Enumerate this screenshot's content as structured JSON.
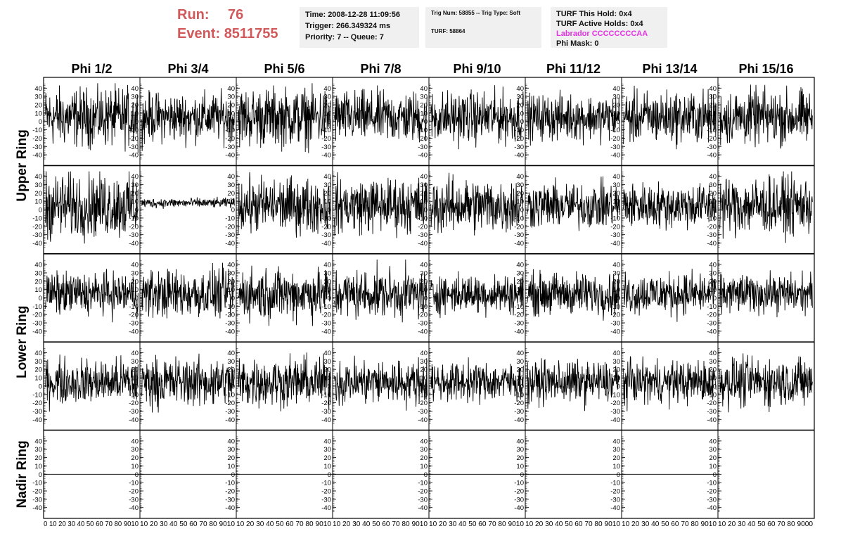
{
  "header": {
    "run_label": "Run:",
    "run_value": "76",
    "event_label": "Event:",
    "event_value": "8511755",
    "time_line": "Time: 2008-12-28 11:09:56",
    "trigger_line": "Trigger: 266.349324 ms",
    "priority_line": "Priority: 7 -- Queue: 7",
    "trig_num_line": "Trig Num: 58855 -- Trig Type: Soft",
    "turf_line": "TURF: 58864",
    "turf_this_hold": "TURF This Hold: 0x4",
    "turf_active_holds": "TURF Active Holds: 0x4",
    "labrador_line": "Labrador CCCCCCCCAA",
    "phi_mask_line": "Phi Mask: 0"
  },
  "colors": {
    "run_text": "#d0595c",
    "info_box_bg": "#f0f0f0",
    "labrador_text": "#e233e2",
    "trace": "#000000"
  },
  "chart_data": {
    "type": "line",
    "columns": [
      "Phi 1/2",
      "Phi 3/4",
      "Phi 5/6",
      "Phi 7/8",
      "Phi 9/10",
      "Phi 11/12",
      "Phi 13/14",
      "Phi 15/16"
    ],
    "row_labels": [
      "Upper Ring",
      "Lower Ring",
      "Nadir Ring"
    ],
    "rows_per_label": [
      2,
      2,
      1
    ],
    "ylim": [
      -47,
      47
    ],
    "yticks": [
      "40",
      "30",
      "20",
      "10",
      "0",
      "-10",
      "-20",
      "-30",
      "-40"
    ],
    "ytick_values": [
      40,
      30,
      20,
      10,
      0,
      -10,
      -20,
      -30,
      -40
    ],
    "xlim": [
      0,
      100
    ],
    "xtick_labels": [
      "0 10 20 30 40 50 60 70 80 9010",
      "10 20 30 40 50 60 70 80 9010",
      "10 20 30 40 50 60 70 80 9010",
      "10 20 30 40 50 60 70 80 9010",
      "10 20 30 40 50 60 70 80 9010",
      "10 20 30 40 50 60 70 80 9010",
      "10 20 30 40 50 60 70 80 9010",
      "10 20 30 40 50 60 70 80 9000"
    ],
    "samples_per_trace": 260,
    "series": [
      {
        "row": 0,
        "col": 0,
        "amplitude": 18,
        "offset": 5,
        "flat": false
      },
      {
        "row": 0,
        "col": 1,
        "amplitude": 15,
        "offset": 5,
        "flat": false
      },
      {
        "row": 0,
        "col": 2,
        "amplitude": 18,
        "offset": 5,
        "flat": false
      },
      {
        "row": 0,
        "col": 3,
        "amplitude": 16,
        "offset": 5,
        "flat": false
      },
      {
        "row": 0,
        "col": 4,
        "amplitude": 16,
        "offset": 5,
        "flat": false
      },
      {
        "row": 0,
        "col": 5,
        "amplitude": 14,
        "offset": 5,
        "flat": false
      },
      {
        "row": 0,
        "col": 6,
        "amplitude": 16,
        "offset": 5,
        "flat": false
      },
      {
        "row": 0,
        "col": 7,
        "amplitude": 17,
        "offset": 5,
        "flat": false
      },
      {
        "row": 1,
        "col": 0,
        "amplitude": 20,
        "offset": 5,
        "flat": false
      },
      {
        "row": 1,
        "col": 1,
        "amplitude": 3,
        "offset": 8,
        "flat": false
      },
      {
        "row": 1,
        "col": 2,
        "amplitude": 17,
        "offset": 5,
        "flat": false
      },
      {
        "row": 1,
        "col": 3,
        "amplitude": 17,
        "offset": 5,
        "flat": false
      },
      {
        "row": 1,
        "col": 4,
        "amplitude": 17,
        "offset": 5,
        "flat": false
      },
      {
        "row": 1,
        "col": 5,
        "amplitude": 14,
        "offset": 5,
        "flat": false
      },
      {
        "row": 1,
        "col": 6,
        "amplitude": 14,
        "offset": 5,
        "flat": false
      },
      {
        "row": 1,
        "col": 7,
        "amplitude": 18,
        "offset": 5,
        "flat": false
      },
      {
        "row": 2,
        "col": 0,
        "amplitude": 13,
        "offset": 5,
        "flat": false
      },
      {
        "row": 2,
        "col": 1,
        "amplitude": 15,
        "offset": 5,
        "flat": false
      },
      {
        "row": 2,
        "col": 2,
        "amplitude": 16,
        "offset": 5,
        "flat": false
      },
      {
        "row": 2,
        "col": 3,
        "amplitude": 15,
        "offset": 5,
        "flat": false
      },
      {
        "row": 2,
        "col": 4,
        "amplitude": 12,
        "offset": 5,
        "flat": false
      },
      {
        "row": 2,
        "col": 5,
        "amplitude": 13,
        "offset": 5,
        "flat": false
      },
      {
        "row": 2,
        "col": 6,
        "amplitude": 13,
        "offset": 5,
        "flat": false
      },
      {
        "row": 2,
        "col": 7,
        "amplitude": 12,
        "offset": 5,
        "flat": false
      },
      {
        "row": 3,
        "col": 0,
        "amplitude": 14,
        "offset": 5,
        "flat": false
      },
      {
        "row": 3,
        "col": 1,
        "amplitude": 15,
        "offset": 5,
        "flat": false
      },
      {
        "row": 3,
        "col": 2,
        "amplitude": 15,
        "offset": 5,
        "flat": false
      },
      {
        "row": 3,
        "col": 3,
        "amplitude": 14,
        "offset": 5,
        "flat": false
      },
      {
        "row": 3,
        "col": 4,
        "amplitude": 12,
        "offset": 5,
        "flat": false
      },
      {
        "row": 3,
        "col": 5,
        "amplitude": 13,
        "offset": 5,
        "flat": false
      },
      {
        "row": 3,
        "col": 6,
        "amplitude": 13,
        "offset": 5,
        "flat": false
      },
      {
        "row": 3,
        "col": 7,
        "amplitude": 15,
        "offset": 5,
        "flat": false
      },
      {
        "row": 4,
        "col": 0,
        "amplitude": 0,
        "offset": 0,
        "flat": true
      },
      {
        "row": 4,
        "col": 1,
        "amplitude": 0,
        "offset": 0,
        "flat": true
      },
      {
        "row": 4,
        "col": 2,
        "amplitude": 0,
        "offset": 0,
        "flat": true
      },
      {
        "row": 4,
        "col": 3,
        "amplitude": 0,
        "offset": 0,
        "flat": true
      },
      {
        "row": 4,
        "col": 4,
        "amplitude": 0,
        "offset": 0,
        "flat": true
      },
      {
        "row": 4,
        "col": 5,
        "amplitude": 0,
        "offset": 0,
        "flat": true
      },
      {
        "row": 4,
        "col": 6,
        "amplitude": 0,
        "offset": 0,
        "flat": true
      },
      {
        "row": 4,
        "col": 7,
        "amplitude": 0,
        "offset": 0,
        "flat": false,
        "empty": true
      }
    ]
  }
}
